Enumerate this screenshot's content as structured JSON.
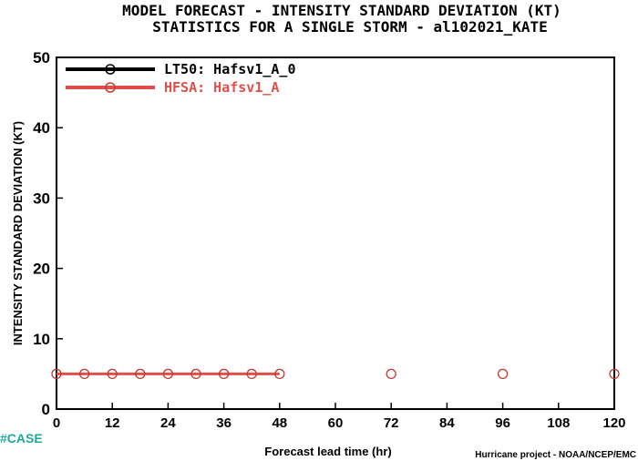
{
  "colors": {
    "lt50": "#000000",
    "hfsa": "#e0504a",
    "hfsa_marker": "#c03a30",
    "case": "#1fa89a"
  },
  "chart_data": {
    "type": "line",
    "title": "MODEL FORECAST - INTENSITY STANDARD DEVIATION (KT)",
    "subtitle": "STATISTICS FOR A SINGLE STORM - al102021_KATE",
    "xlabel": "Forecast lead time (hr)",
    "ylabel": "INTENSITY STANDARD DEVIATION (KT)",
    "xlim": [
      0,
      120
    ],
    "ylim": [
      0,
      50
    ],
    "xticks": [
      0,
      12,
      24,
      36,
      48,
      60,
      72,
      84,
      96,
      108,
      120
    ],
    "yticks": [
      0,
      10,
      20,
      30,
      40,
      50
    ],
    "grid": false,
    "legend_position": "top-left",
    "series": [
      {
        "name": "LT50: Hafsv1_A_0",
        "color": "#000000",
        "x": [],
        "y": []
      },
      {
        "name": "HFSA: Hafsv1_A",
        "color": "#e0504a",
        "line_x": [
          0,
          6,
          12,
          18,
          24,
          30,
          36,
          42,
          48
        ],
        "line_y": [
          5,
          5,
          5,
          5,
          5,
          5,
          5,
          5,
          5
        ],
        "x": [
          0,
          6,
          12,
          18,
          24,
          30,
          36,
          42,
          48,
          72,
          96,
          120
        ],
        "y": [
          5,
          5,
          5,
          5,
          5,
          5,
          5,
          5,
          5,
          5,
          5,
          5
        ]
      }
    ],
    "credit": "Hurricane project - NOAA/NCEP/EMC",
    "case_label": "#CASE"
  }
}
